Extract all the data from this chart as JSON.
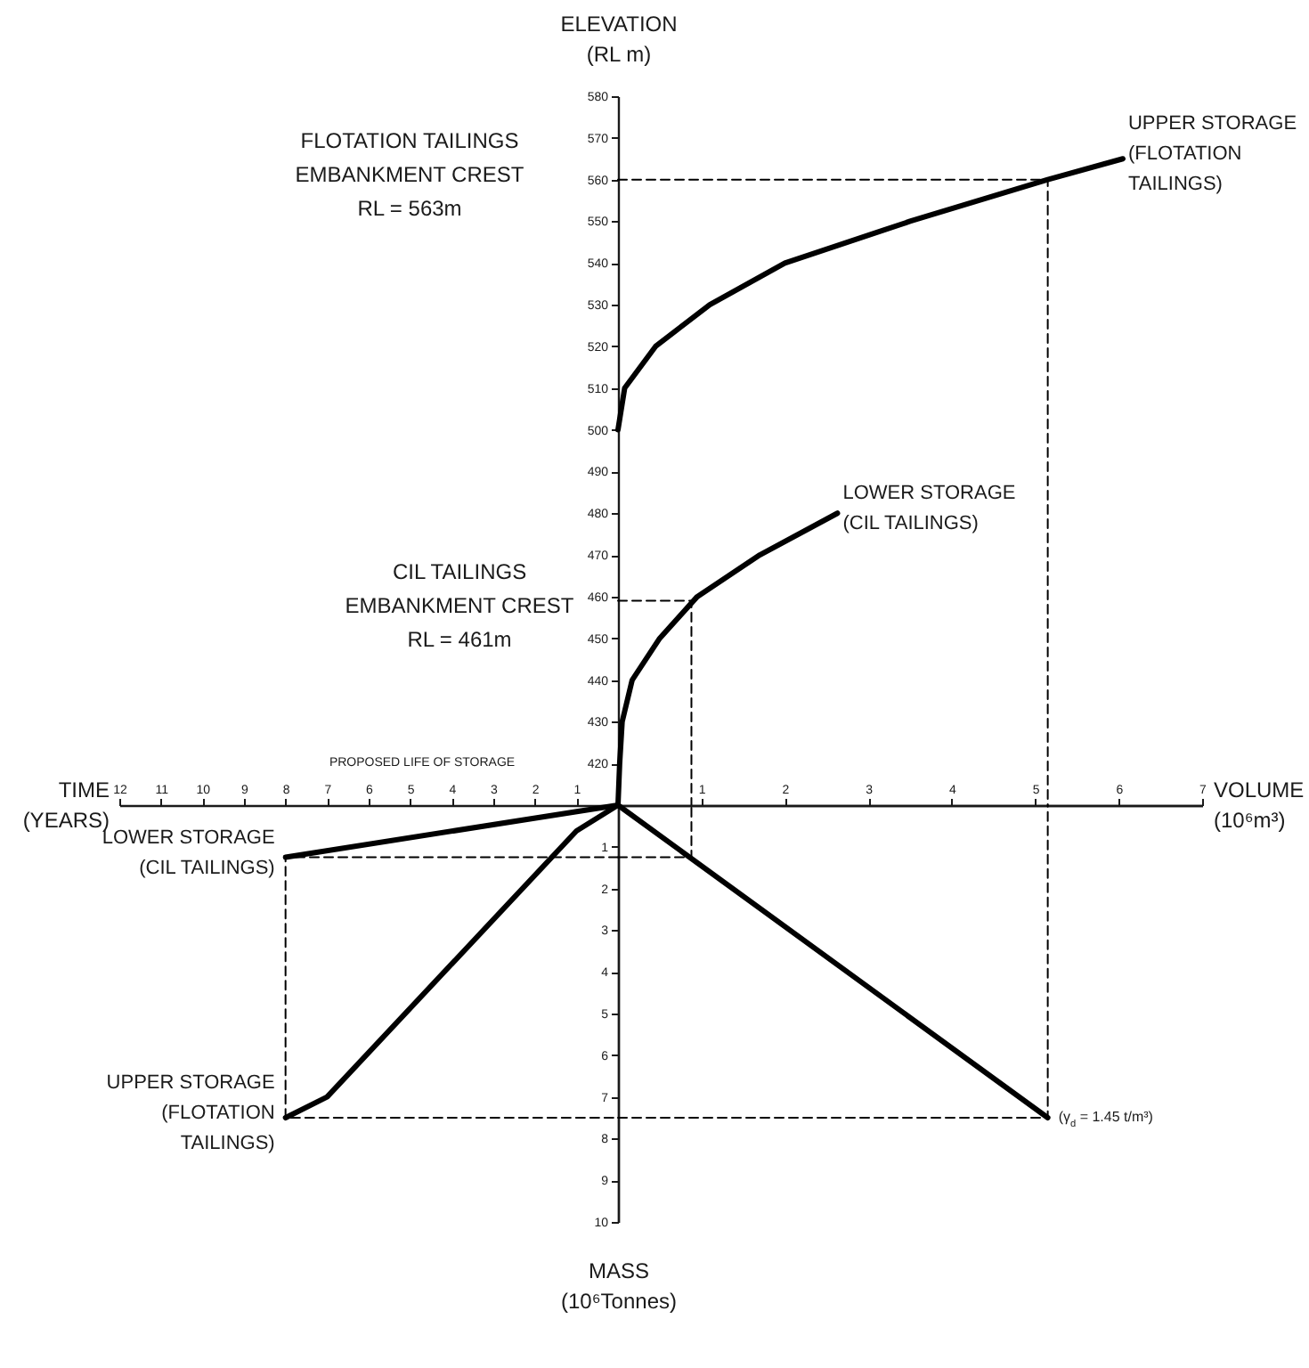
{
  "chart_data": [
    {
      "type": "line",
      "ylabel": "ELEVATION (RL m)",
      "xlim": [
        0,
        7
      ],
      "ylim": [
        410,
        580
      ],
      "yticks": [
        420,
        430,
        440,
        450,
        460,
        470,
        480,
        490,
        500,
        510,
        520,
        530,
        540,
        550,
        560,
        570,
        580
      ],
      "tick_labels": "y",
      "series": [
        {
          "name": "UPPER STORAGE (FLOTATION TAILINGS)",
          "color": "#000000",
          "line_style": "solid",
          "x": [
            0,
            0.08,
            0.45,
            1.1,
            2.0,
            3.5,
            5.15,
            6.05
          ],
          "values": [
            500,
            510,
            520,
            530,
            540,
            550,
            560,
            565
          ]
        },
        {
          "name": "LOWER STORAGE (CIL TAILINGS)",
          "color": "#000000",
          "line_style": "solid",
          "x": [
            0,
            0.02,
            0.05,
            0.17,
            0.5,
            0.95,
            1.7,
            2.63
          ],
          "values": [
            410,
            420,
            430,
            440,
            450,
            460,
            470,
            480
          ]
        },
        {
          "color": "#000000",
          "line_style": "dashed",
          "x": [
            0,
            5.15,
            5.15
          ],
          "values": [
            560,
            560,
            410
          ]
        },
        {
          "color": "#000000",
          "line_style": "dashed",
          "x": [
            0,
            0.88,
            0.88
          ],
          "values": [
            459,
            459,
            410
          ]
        }
      ],
      "annotations": [
        "FLOTATION TAILINGS EMBANKMENT CREST RL = 563m",
        "CIL TAILINGS EMBANKMENT CREST RL = 461m"
      ]
    },
    {
      "type": "line",
      "xlabel": "TIME (YEARS)",
      "xlim": [
        12,
        0
      ],
      "ylim": [
        10,
        0
      ],
      "xticks": [
        1,
        2,
        3,
        4,
        5,
        6,
        7,
        8,
        9,
        10,
        11,
        12
      ],
      "tick_labels": "x",
      "series": [
        {
          "name": "LOWER STORAGE (CIL TAILINGS)",
          "color": "#000000",
          "line_style": "solid",
          "x": [
            0,
            8
          ],
          "values": [
            0,
            1.25
          ]
        },
        {
          "name": "UPPER STORAGE (FLOTATION TAILINGS)",
          "color": "#000000",
          "line_style": "solid",
          "x": [
            0,
            1.0,
            7,
            8
          ],
          "values": [
            0,
            0.62,
            7,
            7.5
          ]
        },
        {
          "color": "#000000",
          "line_style": "dashed",
          "x": [
            0,
            8,
            8,
            0
          ],
          "values": [
            1.25,
            1.25,
            7.5,
            7.5
          ]
        }
      ],
      "annotations": [
        "PROPOSED LIFE OF STORAGE"
      ]
    },
    {
      "type": "line",
      "xlabel": "VOLUME (10⁶m³)",
      "ylabel": "MASS (10⁶Tonnes)",
      "xlim": [
        0,
        7
      ],
      "ylim": [
        10,
        0
      ],
      "xticks": [
        1,
        2,
        3,
        4,
        5,
        6,
        7
      ],
      "yticks": [
        1,
        2,
        3,
        4,
        5,
        6,
        7,
        8,
        9,
        10
      ],
      "series": [
        {
          "color": "#000000",
          "line_style": "solid",
          "x": [
            0,
            5.15
          ],
          "values": [
            0,
            7.5
          ]
        },
        {
          "color": "#000000",
          "line_style": "dashed",
          "x": [
            0,
            5.15,
            5.15
          ],
          "values": [
            7.5,
            7.5,
            0
          ]
        },
        {
          "color": "#000000",
          "line_style": "dashed",
          "x": [
            0,
            0.88,
            0.88
          ],
          "values": [
            1.25,
            1.25,
            0
          ]
        }
      ],
      "annotations": [
        {
          "text": "(γ$_{d}$ = 1.45 t/m³)",
          "x": 5.15,
          "y": 7.5
        }
      ]
    }
  ]
}
